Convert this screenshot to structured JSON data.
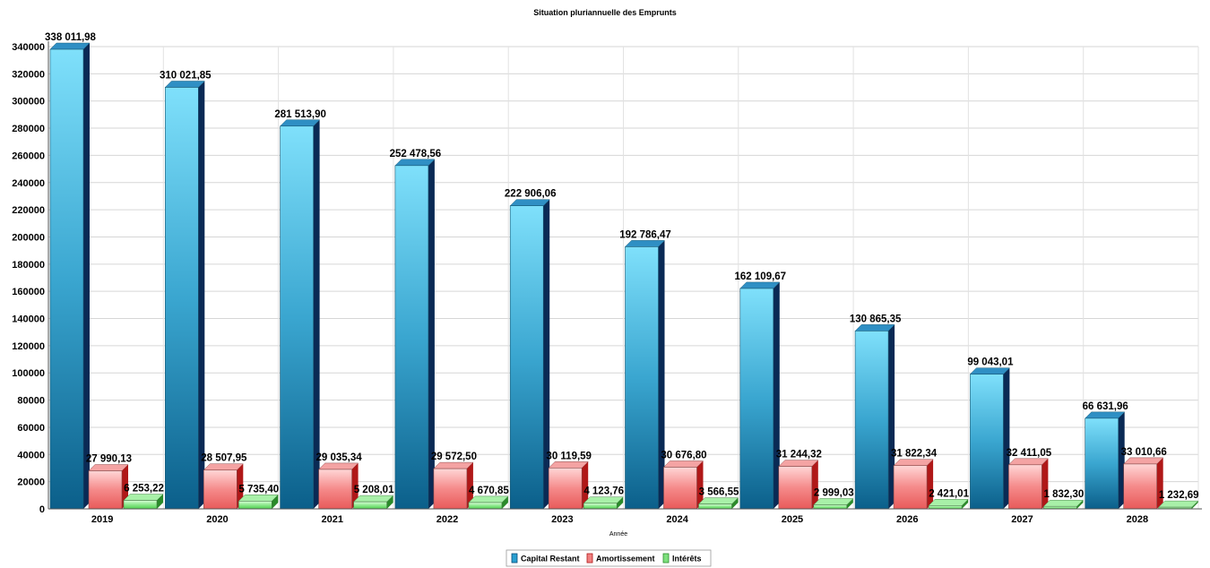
{
  "chart_data": {
    "type": "bar",
    "title": "Situation pluriannuelle des Emprunts",
    "xlabel": "Année",
    "ylabel": "",
    "ylim": [
      0,
      340000
    ],
    "y_tick_step": 20000,
    "grid": true,
    "legend_position": "bottom",
    "categories": [
      "2019",
      "2020",
      "2021",
      "2022",
      "2023",
      "2024",
      "2025",
      "2026",
      "2027",
      "2028"
    ],
    "series": [
      {
        "name": "Capital Restant",
        "color": "#2a9fd0",
        "values": [
          338011.98,
          310021.85,
          281513.9,
          252478.56,
          222906.06,
          192786.47,
          162109.67,
          130865.35,
          99043.01,
          66631.96
        ],
        "labels": [
          "338 011,98",
          "310 021,85",
          "281 513,90",
          "252 478,56",
          "222 906,06",
          "192 786,47",
          "162 109,67",
          "130 865,35",
          "99 043,01",
          "66 631,96"
        ]
      },
      {
        "name": "Amortissement",
        "color": "#f08080",
        "values": [
          27990.13,
          28507.95,
          29035.34,
          29572.5,
          30119.59,
          30676.8,
          31244.32,
          31822.34,
          32411.05,
          33010.66
        ],
        "labels": [
          "27 990,13",
          "28 507,95",
          "29 035,34",
          "29 572,50",
          "30 119,59",
          "30 676,80",
          "31 244,32",
          "31 822,34",
          "32 411,05",
          "33 010,66"
        ]
      },
      {
        "name": "Intérêts",
        "color": "#7ee07e",
        "values": [
          6253.22,
          5735.4,
          5208.01,
          4670.85,
          4123.76,
          3566.55,
          2999.03,
          2421.01,
          1832.3,
          1232.69
        ],
        "labels": [
          "6 253,22",
          "5 735,40",
          "5 208,01",
          "4 670,85",
          "4 123,76",
          "3 566,55",
          "2 999,03",
          "2 421,01",
          "1 832,30",
          "1 232,69"
        ]
      }
    ]
  }
}
